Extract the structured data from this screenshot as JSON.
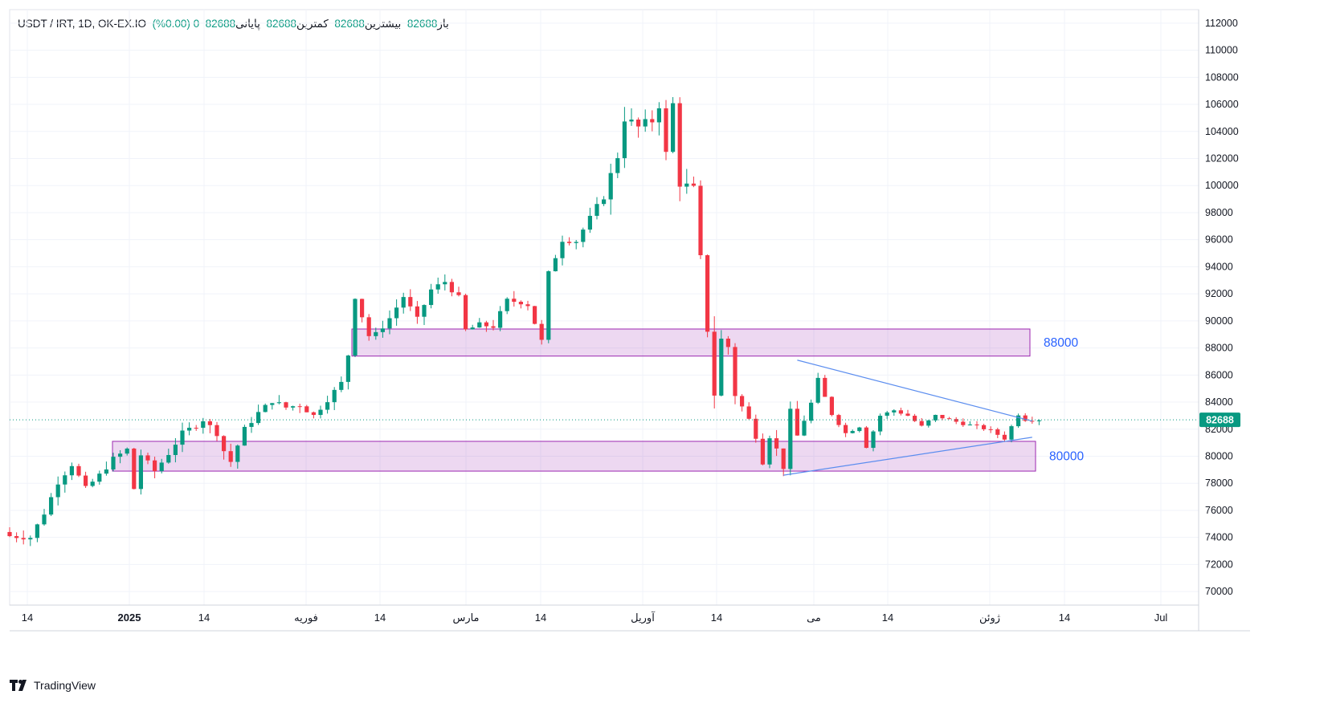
{
  "header": {
    "symbol": "USDT / IRT, 1D, OK-EX.IO",
    "open_label": "باز",
    "open_value": "82688",
    "high_label": "بیشترین",
    "high_value": "82688",
    "low_label": "کمترین",
    "low_value": "82688",
    "close_label": "پایانی",
    "close_value": "82688",
    "change": "0 (0.00%)"
  },
  "chart_data": {
    "type": "candlestick",
    "ylim": [
      69000,
      113000
    ],
    "y_ticks": [
      70000,
      72000,
      74000,
      76000,
      78000,
      80000,
      82000,
      84000,
      86000,
      88000,
      90000,
      92000,
      94000,
      96000,
      98000,
      100000,
      102000,
      104000,
      106000,
      108000,
      110000,
      112000
    ],
    "x_ticks": [
      "14",
      "2025",
      "14",
      "فوریه",
      "14",
      "مارس",
      "14",
      "آوریل",
      "14",
      "می",
      "14",
      "ژوئن",
      "14",
      "Jul"
    ],
    "last_price": "82688",
    "zones": [
      {
        "label": "88000",
        "low": 87400,
        "high": 89400
      },
      {
        "label": "80000",
        "low": 78900,
        "high": 81100
      }
    ],
    "trendlines": [
      {
        "name": "upper-resistance",
        "from": [
          114,
          87100
        ],
        "to": [
          148,
          82600
        ]
      },
      {
        "name": "lower-support",
        "from": [
          112,
          78600
        ],
        "to": [
          148,
          81400
        ]
      }
    ],
    "anchors": [
      [
        0,
        74100
      ],
      [
        3,
        74000
      ],
      [
        5,
        75800
      ],
      [
        7,
        78100
      ],
      [
        9,
        79400
      ],
      [
        11,
        77600
      ],
      [
        13,
        78600
      ],
      [
        15,
        79800
      ],
      [
        17,
        80500
      ],
      [
        18,
        77600
      ],
      [
        19,
        80100
      ],
      [
        21,
        78900
      ],
      [
        23,
        80200
      ],
      [
        25,
        81700
      ],
      [
        27,
        82300
      ],
      [
        28,
        82700
      ],
      [
        30,
        81700
      ],
      [
        31,
        80400
      ],
      [
        32,
        79600
      ],
      [
        34,
        82000
      ],
      [
        36,
        83200
      ],
      [
        38,
        84100
      ],
      [
        40,
        83600
      ],
      [
        42,
        83800
      ],
      [
        44,
        83000
      ],
      [
        46,
        84200
      ],
      [
        48,
        85400
      ],
      [
        49,
        87500
      ],
      [
        50,
        91800
      ],
      [
        52,
        88900
      ],
      [
        53,
        89000
      ],
      [
        55,
        90200
      ],
      [
        57,
        91800
      ],
      [
        59,
        90100
      ],
      [
        61,
        92300
      ],
      [
        63,
        92900
      ],
      [
        65,
        91700
      ],
      [
        66,
        89300
      ],
      [
        68,
        89700
      ],
      [
        70,
        89600
      ],
      [
        72,
        91500
      ],
      [
        74,
        91400
      ],
      [
        75,
        91200
      ],
      [
        77,
        88500
      ],
      [
        78,
        93500
      ],
      [
        80,
        96000
      ],
      [
        82,
        95900
      ],
      [
        84,
        97600
      ],
      [
        86,
        99300
      ],
      [
        88,
        102200
      ],
      [
        89,
        105000
      ],
      [
        91,
        104300
      ],
      [
        93,
        104800
      ],
      [
        94,
        106000
      ],
      [
        95,
        102300
      ],
      [
        96,
        106000
      ],
      [
        97,
        100200
      ],
      [
        99,
        99700
      ],
      [
        101,
        89400
      ],
      [
        102,
        84600
      ],
      [
        103,
        88600
      ],
      [
        104,
        88100
      ],
      [
        105,
        84600
      ],
      [
        107,
        82700
      ],
      [
        108,
        81500
      ],
      [
        109,
        79600
      ],
      [
        110,
        81500
      ],
      [
        111,
        80500
      ],
      [
        112,
        79200
      ],
      [
        113,
        83300
      ],
      [
        114,
        81500
      ],
      [
        116,
        83900
      ],
      [
        117,
        85600
      ],
      [
        119,
        83100
      ],
      [
        121,
        81700
      ],
      [
        123,
        82200
      ],
      [
        124,
        80700
      ],
      [
        126,
        83000
      ],
      [
        128,
        83400
      ],
      [
        130,
        83000
      ],
      [
        132,
        82200
      ],
      [
        134,
        83000
      ],
      [
        136,
        82700
      ],
      [
        138,
        82400
      ],
      [
        140,
        82200
      ],
      [
        142,
        81900
      ],
      [
        144,
        81300
      ],
      [
        146,
        83100
      ],
      [
        147,
        82700
      ]
    ]
  },
  "branding": "TradingView"
}
